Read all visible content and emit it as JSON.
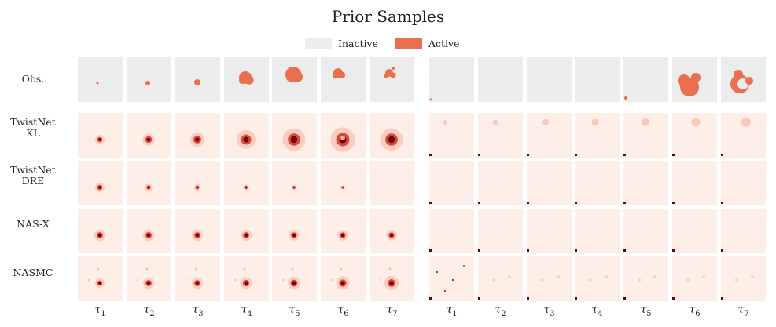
{
  "title": "Prior Samples",
  "legend": [
    {
      "label": "Inactive",
      "color": "#ececec"
    },
    {
      "label": "Active",
      "color": "#e8704f"
    }
  ],
  "rows": [
    {
      "id": "obs",
      "label_lines": [
        "Obs."
      ]
    },
    {
      "id": "twistnet-kl",
      "label_lines": [
        "TwistNet",
        "KL"
      ]
    },
    {
      "id": "twistnet-dre",
      "label_lines": [
        "TwistNet",
        "DRE"
      ]
    },
    {
      "id": "nas-x",
      "label_lines": [
        "NAS-X"
      ]
    },
    {
      "id": "nasmc",
      "label_lines": [
        "NASMC"
      ]
    }
  ],
  "columns": {
    "tau_symbol": "τ",
    "indices": [
      "1",
      "2",
      "3",
      "4",
      "5",
      "6",
      "7"
    ]
  },
  "colors": {
    "inactive_bg": "#ececec",
    "active": "#e8704f",
    "heat_bg": "#fdeee8",
    "heat_light": "#f6b39c",
    "heat_mid": "#d7301f",
    "heat_dark": "#67000d"
  }
}
